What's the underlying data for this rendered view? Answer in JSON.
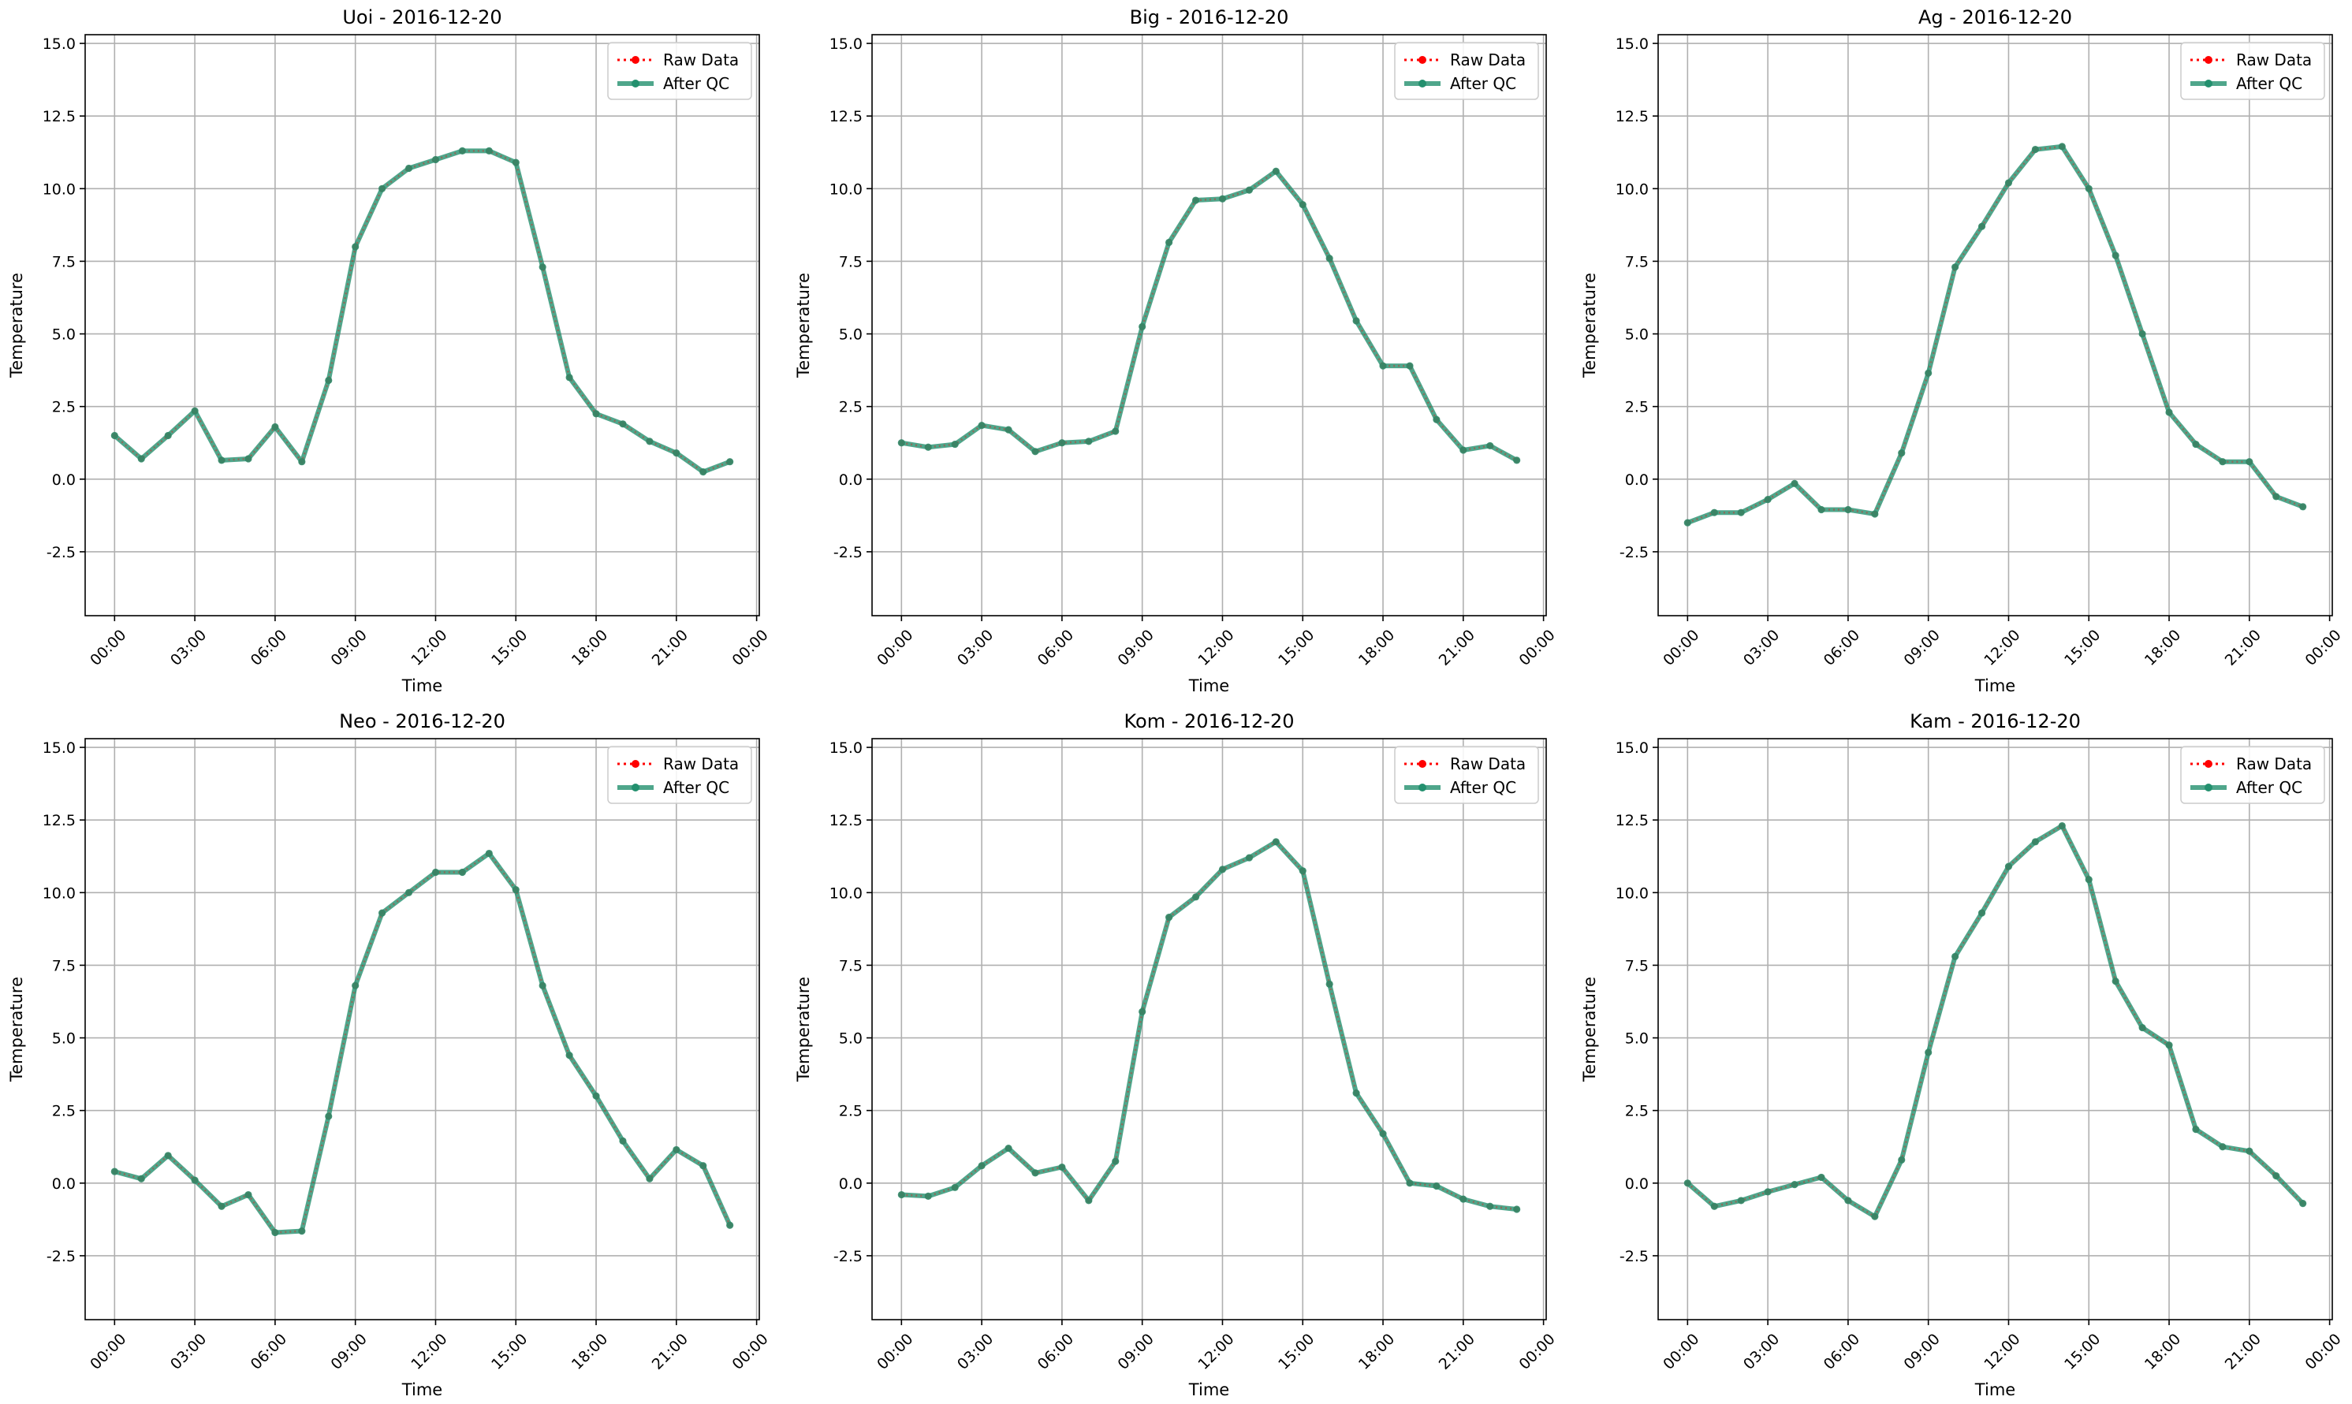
{
  "figure": {
    "x_tick_labels": [
      "00:00",
      "03:00",
      "06:00",
      "09:00",
      "12:00",
      "15:00",
      "18:00",
      "21:00",
      "00:00"
    ],
    "y_tick_labels": [
      "-2.5",
      "0.0",
      "2.5",
      "5.0",
      "7.5",
      "10.0",
      "12.5",
      "15.0"
    ],
    "legend": {
      "raw_label": "Raw Data",
      "qc_label": "After QC",
      "placement": "upper-right"
    },
    "colors": {
      "raw": "#ff0000",
      "qc": "#23906e",
      "grid": "#b0b0b0"
    }
  },
  "chart_data": [
    {
      "type": "line",
      "title": "Uoi - 2016-12-20",
      "xlabel": "Time",
      "ylabel": "Temperature",
      "xlim": [
        -1.1,
        24.1
      ],
      "ylim": [
        -4.7,
        15.3
      ],
      "grid": true,
      "x_hours": [
        0,
        1,
        2,
        3,
        4,
        5,
        6,
        7,
        8,
        9,
        10,
        11,
        12,
        13,
        14,
        15,
        16,
        17,
        18,
        19,
        20,
        21,
        22,
        23
      ],
      "series": [
        {
          "name": "Raw Data",
          "values": [
            1.5,
            0.7,
            1.5,
            2.35,
            0.65,
            0.7,
            1.8,
            0.6,
            3.4,
            8.0,
            10.0,
            10.7,
            11.0,
            11.3,
            11.3,
            10.9,
            7.3,
            3.5,
            2.25,
            1.9,
            1.3,
            0.9,
            0.25,
            0.6
          ]
        },
        {
          "name": "After QC",
          "values": [
            1.5,
            0.7,
            1.5,
            2.35,
            0.65,
            0.7,
            1.8,
            0.6,
            3.4,
            8.0,
            10.0,
            10.7,
            11.0,
            11.3,
            11.3,
            10.9,
            7.3,
            3.5,
            2.25,
            1.9,
            1.3,
            0.9,
            0.25,
            0.6
          ]
        }
      ]
    },
    {
      "type": "line",
      "title": "Big - 2016-12-20",
      "xlabel": "Time",
      "ylabel": "Temperature",
      "xlim": [
        -1.1,
        24.1
      ],
      "ylim": [
        -4.7,
        15.3
      ],
      "grid": true,
      "x_hours": [
        0,
        1,
        2,
        3,
        4,
        5,
        6,
        7,
        8,
        9,
        10,
        11,
        12,
        13,
        14,
        15,
        16,
        17,
        18,
        19,
        20,
        21,
        22,
        23
      ],
      "series": [
        {
          "name": "Raw Data",
          "values": [
            1.25,
            1.1,
            1.2,
            1.85,
            1.7,
            0.95,
            1.25,
            1.3,
            1.65,
            5.25,
            8.15,
            9.6,
            9.65,
            9.95,
            10.6,
            9.45,
            7.6,
            5.45,
            3.9,
            3.9,
            2.05,
            1.0,
            1.15,
            0.65
          ]
        },
        {
          "name": "After QC",
          "values": [
            1.25,
            1.1,
            1.2,
            1.85,
            1.7,
            0.95,
            1.25,
            1.3,
            1.65,
            5.25,
            8.15,
            9.6,
            9.65,
            9.95,
            10.6,
            9.45,
            7.6,
            5.45,
            3.9,
            3.9,
            2.05,
            1.0,
            1.15,
            0.65
          ]
        }
      ]
    },
    {
      "type": "line",
      "title": "Ag - 2016-12-20",
      "xlabel": "Time",
      "ylabel": "Temperature",
      "xlim": [
        -1.1,
        24.1
      ],
      "ylim": [
        -4.7,
        15.3
      ],
      "grid": true,
      "x_hours": [
        0,
        1,
        2,
        3,
        4,
        5,
        6,
        7,
        8,
        9,
        10,
        11,
        12,
        13,
        14,
        15,
        16,
        17,
        18,
        19,
        20,
        21,
        22,
        23
      ],
      "series": [
        {
          "name": "Raw Data",
          "values": [
            -1.5,
            -1.15,
            -1.15,
            -0.7,
            -0.15,
            -1.05,
            -1.05,
            -1.2,
            0.9,
            3.65,
            7.3,
            8.7,
            10.2,
            11.35,
            11.45,
            10.0,
            7.7,
            5.0,
            2.3,
            1.2,
            0.6,
            0.6,
            -0.6,
            -0.95
          ]
        },
        {
          "name": "After QC",
          "values": [
            -1.5,
            -1.15,
            -1.15,
            -0.7,
            -0.15,
            -1.05,
            -1.05,
            -1.2,
            0.9,
            3.65,
            7.3,
            8.7,
            10.2,
            11.35,
            11.45,
            10.0,
            7.7,
            5.0,
            2.3,
            1.2,
            0.6,
            0.6,
            -0.6,
            -0.95
          ]
        }
      ]
    },
    {
      "type": "line",
      "title": "Neo - 2016-12-20",
      "xlabel": "Time",
      "ylabel": "Temperature",
      "xlim": [
        -1.1,
        24.1
      ],
      "ylim": [
        -4.7,
        15.3
      ],
      "grid": true,
      "x_hours": [
        0,
        1,
        2,
        3,
        4,
        5,
        6,
        7,
        8,
        9,
        10,
        11,
        12,
        13,
        14,
        15,
        16,
        17,
        18,
        19,
        20,
        21,
        22,
        23
      ],
      "series": [
        {
          "name": "Raw Data",
          "values": [
            0.4,
            0.15,
            0.95,
            0.1,
            -0.8,
            -0.4,
            -1.7,
            -1.65,
            2.3,
            6.8,
            9.3,
            10.0,
            10.7,
            10.7,
            11.35,
            10.1,
            6.8,
            4.4,
            3.0,
            1.45,
            0.15,
            1.15,
            0.6,
            -1.45
          ]
        },
        {
          "name": "After QC",
          "values": [
            0.4,
            0.15,
            0.95,
            0.1,
            -0.8,
            -0.4,
            -1.7,
            -1.65,
            2.3,
            6.8,
            9.3,
            10.0,
            10.7,
            10.7,
            11.35,
            10.1,
            6.8,
            4.4,
            3.0,
            1.45,
            0.15,
            1.15,
            0.6,
            -1.45
          ]
        }
      ]
    },
    {
      "type": "line",
      "title": "Kom - 2016-12-20",
      "xlabel": "Time",
      "ylabel": "Temperature",
      "xlim": [
        -1.1,
        24.1
      ],
      "ylim": [
        -4.7,
        15.3
      ],
      "grid": true,
      "x_hours": [
        0,
        1,
        2,
        3,
        4,
        5,
        6,
        7,
        8,
        9,
        10,
        11,
        12,
        13,
        14,
        15,
        16,
        17,
        18,
        19,
        20,
        21,
        22,
        23
      ],
      "series": [
        {
          "name": "Raw Data",
          "values": [
            -0.4,
            -0.45,
            -0.15,
            0.6,
            1.2,
            0.35,
            0.55,
            -0.6,
            0.75,
            5.9,
            9.15,
            9.85,
            10.8,
            11.2,
            11.75,
            10.75,
            6.85,
            3.1,
            1.7,
            0.0,
            -0.1,
            -0.55,
            -0.8,
            -0.9
          ]
        },
        {
          "name": "After QC",
          "values": [
            -0.4,
            -0.45,
            -0.15,
            0.6,
            1.2,
            0.35,
            0.55,
            -0.6,
            0.75,
            5.9,
            9.15,
            9.85,
            10.8,
            11.2,
            11.75,
            10.75,
            6.85,
            3.1,
            1.7,
            0.0,
            -0.1,
            -0.55,
            -0.8,
            -0.9
          ]
        }
      ]
    },
    {
      "type": "line",
      "title": "Kam - 2016-12-20",
      "xlabel": "Time",
      "ylabel": "Temperature",
      "xlim": [
        -1.1,
        24.1
      ],
      "ylim": [
        -4.7,
        15.3
      ],
      "grid": true,
      "x_hours": [
        0,
        1,
        2,
        3,
        4,
        5,
        6,
        7,
        8,
        9,
        10,
        11,
        12,
        13,
        14,
        15,
        16,
        17,
        18,
        19,
        20,
        21,
        22,
        23
      ],
      "series": [
        {
          "name": "Raw Data",
          "values": [
            0.0,
            -0.8,
            -0.6,
            -0.3,
            -0.05,
            0.2,
            -0.6,
            -1.15,
            0.8,
            4.5,
            7.8,
            9.3,
            10.9,
            11.75,
            12.3,
            10.45,
            6.95,
            5.35,
            4.75,
            1.85,
            1.25,
            1.1,
            0.25,
            -0.7
          ]
        },
        {
          "name": "After QC",
          "values": [
            0.0,
            -0.8,
            -0.6,
            -0.3,
            -0.05,
            0.2,
            -0.6,
            -1.15,
            0.8,
            4.5,
            7.8,
            9.3,
            10.9,
            11.75,
            12.3,
            10.45,
            6.95,
            5.35,
            4.75,
            1.85,
            1.25,
            1.1,
            0.25,
            -0.7
          ]
        }
      ]
    }
  ]
}
